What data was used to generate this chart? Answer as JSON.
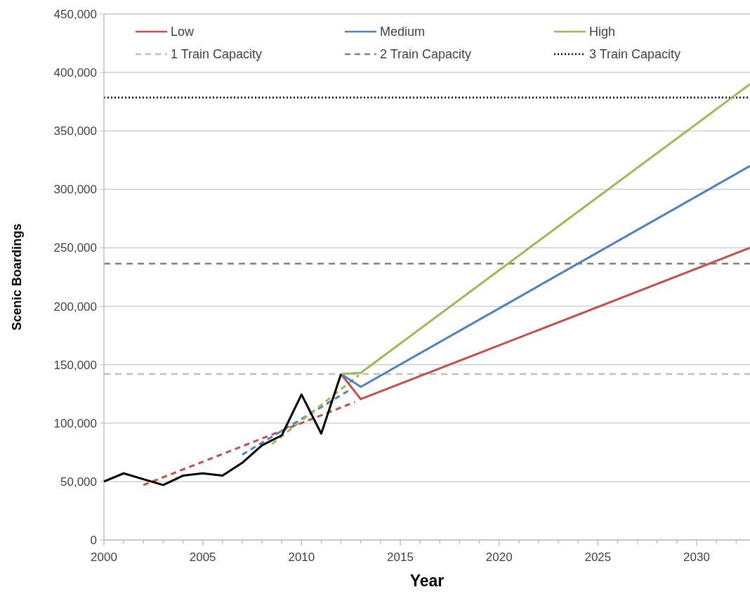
{
  "chart_data": {
    "type": "line",
    "xlabel": "Year",
    "ylabel": "Scenic Boardings",
    "xlim": [
      2000,
      2032.7
    ],
    "ylim": [
      0,
      450000
    ],
    "xticks": [
      2000,
      {
        "value": 2001,
        "label": null
      },
      {
        "value": 2002,
        "label": null
      },
      {
        "value": 2003,
        "label": null
      },
      {
        "value": 2004,
        "label": null
      },
      2005,
      {
        "value": 2006,
        "label": null
      },
      {
        "value": 2007,
        "label": null
      },
      {
        "value": 2008,
        "label": null
      },
      {
        "value": 2009,
        "label": null
      },
      2010,
      {
        "value": 2011,
        "label": null
      },
      {
        "value": 2012,
        "label": null
      },
      {
        "value": 2013,
        "label": null
      },
      {
        "value": 2014,
        "label": null
      },
      2015,
      {
        "value": 2016,
        "label": null
      },
      {
        "value": 2017,
        "label": null
      },
      {
        "value": 2018,
        "label": null
      },
      {
        "value": 2019,
        "label": null
      },
      2020,
      {
        "value": 2021,
        "label": null
      },
      {
        "value": 2022,
        "label": null
      },
      {
        "value": 2023,
        "label": null
      },
      {
        "value": 2024,
        "label": null
      },
      2025,
      {
        "value": 2026,
        "label": null
      },
      {
        "value": 2027,
        "label": null
      },
      {
        "value": 2028,
        "label": null
      },
      {
        "value": 2029,
        "label": null
      },
      2030,
      {
        "value": 2031,
        "label": null
      },
      {
        "value": 2032,
        "label": null
      }
    ],
    "yticks": [
      0,
      {
        "value": 50000,
        "label": "50,000"
      },
      {
        "value": 100000,
        "label": "100,000"
      },
      {
        "value": 150000,
        "label": "150,000"
      },
      {
        "value": 200000,
        "label": "200,000"
      },
      {
        "value": 250000,
        "label": "250,000"
      },
      {
        "value": 300000,
        "label": "300,000"
      },
      {
        "value": 350000,
        "label": "350,000"
      },
      {
        "value": 400000,
        "label": "400,000"
      },
      {
        "value": 450000,
        "label": "450,000"
      }
    ],
    "grid": "y",
    "legend": "top",
    "marker": "none",
    "line_style": "solid",
    "series": [
      {
        "color": "#c0504d",
        "line_style": "dashed",
        "x": [
          2002,
          2012.7
        ],
        "values": [
          47000,
          118000
        ]
      },
      {
        "color": "#4f81bd",
        "line_style": "dashed",
        "x": [
          2007,
          2012.6
        ],
        "values": [
          73000,
          130000
        ]
      },
      {
        "color": "#9bbb59",
        "line_style": "dashed",
        "x": [
          2008.5,
          2012.9
        ],
        "values": [
          82000,
          141000
        ]
      },
      {
        "name": "Low",
        "color": "#c0504d",
        "x": [
          2012,
          2013,
          2032.7
        ],
        "values": [
          142000,
          120500,
          250000
        ]
      },
      {
        "name": "Medium",
        "color": "#4f81bd",
        "x": [
          2012,
          2013,
          2032.7
        ],
        "values": [
          142000,
          131000,
          320000
        ]
      },
      {
        "name": "High",
        "color": "#9bbb59",
        "x": [
          2012,
          2013,
          2032.7
        ],
        "values": [
          142000,
          143000,
          390000
        ]
      },
      {
        "color": "#000000",
        "x": [
          2000,
          2001,
          2002,
          2003,
          2004,
          2005,
          2006,
          2007,
          2008,
          2009,
          2010,
          2011,
          2012
        ],
        "values": [
          50000,
          57000,
          52000,
          47000,
          55000,
          57000,
          55000,
          66000,
          81000,
          89500,
          124500,
          91000,
          142000
        ]
      }
    ],
    "ref_lines": [
      {
        "axis": "y",
        "value": 142000,
        "label": "1 Train Capacity",
        "color": "#bfbfbf",
        "line_style": "dashed"
      },
      {
        "axis": "y",
        "value": 236500,
        "label": "2 Train Capacity",
        "color": "#7f7f7f",
        "line_style": "dashed"
      },
      {
        "axis": "y",
        "value": 378500,
        "label": "3 Train Capacity",
        "color": "#000000",
        "line_style": "dotted"
      }
    ]
  }
}
